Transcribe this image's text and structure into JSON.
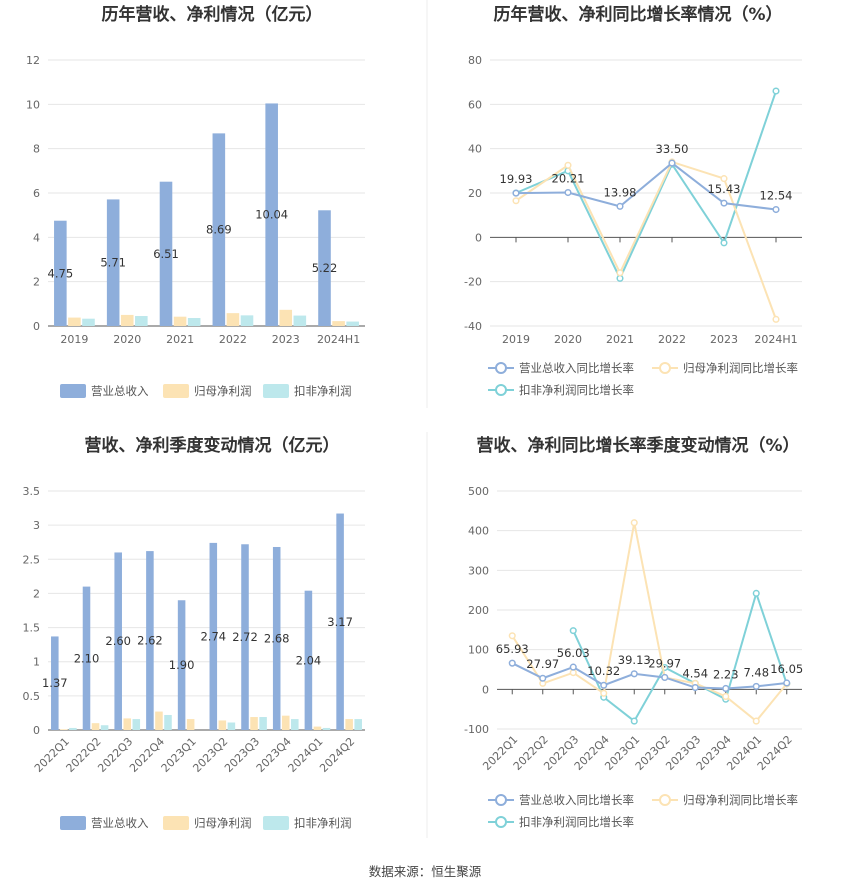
{
  "source_label": "数据来源：恒生聚源",
  "colors": {
    "revenue": "#8eaedb",
    "net_profit": "#fce3b4",
    "deducted": "#bde8ec",
    "revenue_line": "#8eaedb",
    "net_line": "#fce3b4",
    "deducted_line": "#7fd1d8"
  },
  "chart_data": [
    {
      "id": "annual",
      "type": "bar",
      "title": "历年营收、净利情况（亿元）",
      "categories": [
        "2019",
        "2020",
        "2021",
        "2022",
        "2023",
        "2024H1"
      ],
      "yticks": [
        "0",
        "2",
        "4",
        "6",
        "8",
        "10",
        "12"
      ],
      "ylim": [
        0,
        12
      ],
      "grid": true,
      "legend_position": "bottom",
      "series": [
        {
          "name": "营业总收入",
          "values": [
            4.75,
            5.71,
            6.51,
            8.69,
            10.04,
            5.22
          ],
          "labels": [
            "4.75",
            "5.71",
            "6.51",
            "8.69",
            "10.04",
            "5.22"
          ]
        },
        {
          "name": "归母净利润",
          "values": [
            0.38,
            0.5,
            0.42,
            0.58,
            0.73,
            0.22
          ]
        },
        {
          "name": "扣非净利润",
          "values": [
            0.33,
            0.45,
            0.36,
            0.48,
            0.47,
            0.2
          ]
        }
      ]
    },
    {
      "id": "annual_growth",
      "type": "line",
      "title": "历年营收、净利同比增长率情况（%）",
      "categories": [
        "2019",
        "2020",
        "2021",
        "2022",
        "2023",
        "2024H1"
      ],
      "yticks": [
        "-40",
        "-20",
        "0",
        "20",
        "40",
        "60",
        "80"
      ],
      "ylim": [
        -40,
        80
      ],
      "grid": true,
      "legend_position": "bottom",
      "series": [
        {
          "name": "营业总收入同比增长率",
          "values": [
            19.93,
            20.21,
            13.98,
            33.5,
            15.43,
            12.54
          ],
          "labels": [
            "19.93",
            "20.21",
            "13.98",
            "33.50",
            "15.43",
            "12.54"
          ]
        },
        {
          "name": "归母净利润同比增长率",
          "values": [
            16.5,
            32.5,
            -16.0,
            34.0,
            26.5,
            -37.0
          ]
        },
        {
          "name": "扣非净利润同比增长率",
          "values": [
            20.0,
            30.0,
            -18.5,
            33.0,
            -2.5,
            66.0
          ]
        }
      ]
    },
    {
      "id": "quarterly",
      "type": "bar",
      "title": "营收、净利季度变动情况（亿元）",
      "categories": [
        "2022Q1",
        "2022Q2",
        "2022Q3",
        "2022Q4",
        "2023Q1",
        "2023Q2",
        "2023Q3",
        "2023Q4",
        "2024Q1",
        "2024Q2"
      ],
      "yticks": [
        "0",
        "0.5",
        "1",
        "1.5",
        "2",
        "2.5",
        "3",
        "3.5"
      ],
      "ylim": [
        0,
        3.5
      ],
      "grid": true,
      "legend_position": "bottom",
      "series": [
        {
          "name": "营业总收入",
          "values": [
            1.37,
            2.1,
            2.6,
            2.62,
            1.9,
            2.74,
            2.72,
            2.68,
            2.04,
            3.17
          ],
          "labels": [
            "1.37",
            "2.10",
            "2.60",
            "2.62",
            "1.90",
            "2.74",
            "2.72",
            "2.68",
            "2.04",
            "3.17"
          ]
        },
        {
          "name": "归母净利润",
          "values": [
            0.01,
            0.1,
            0.17,
            0.27,
            0.16,
            0.14,
            0.19,
            0.21,
            0.05,
            0.16
          ]
        },
        {
          "name": "扣非净利润",
          "values": [
            0.03,
            0.07,
            0.16,
            0.22,
            0.0,
            0.11,
            0.19,
            0.16,
            0.03,
            0.16
          ]
        }
      ]
    },
    {
      "id": "quarterly_growth",
      "type": "line",
      "title": "营收、净利同比增长率季度变动情况（%）",
      "categories": [
        "2022Q1",
        "2022Q2",
        "2022Q3",
        "2022Q4",
        "2023Q1",
        "2023Q2",
        "2023Q3",
        "2023Q4",
        "2024Q1",
        "2024Q2"
      ],
      "yticks": [
        "-100",
        "0",
        "100",
        "200",
        "300",
        "400",
        "500"
      ],
      "ylim": [
        -100,
        500
      ],
      "grid": true,
      "legend_position": "bottom",
      "series": [
        {
          "name": "营业总收入同比增长率",
          "values": [
            65.93,
            27.97,
            56.03,
            10.32,
            39.13,
            29.97,
            4.54,
            2.23,
            7.48,
            16.05
          ],
          "labels": [
            "65.93",
            "27.97",
            "56.03",
            "10.32",
            "39.13",
            "29.97",
            "4.54",
            "2.23",
            "7.48",
            "16.05"
          ]
        },
        {
          "name": "归母净利润同比增长率",
          "values": [
            135,
            15,
            42,
            -10,
            420,
            30,
            15,
            -18,
            -80,
            14
          ]
        },
        {
          "name": "扣非净利润同比增长率",
          "values": [
            null,
            null,
            148,
            -20,
            -80,
            55,
            15,
            -25,
            242,
            14
          ]
        }
      ]
    }
  ]
}
